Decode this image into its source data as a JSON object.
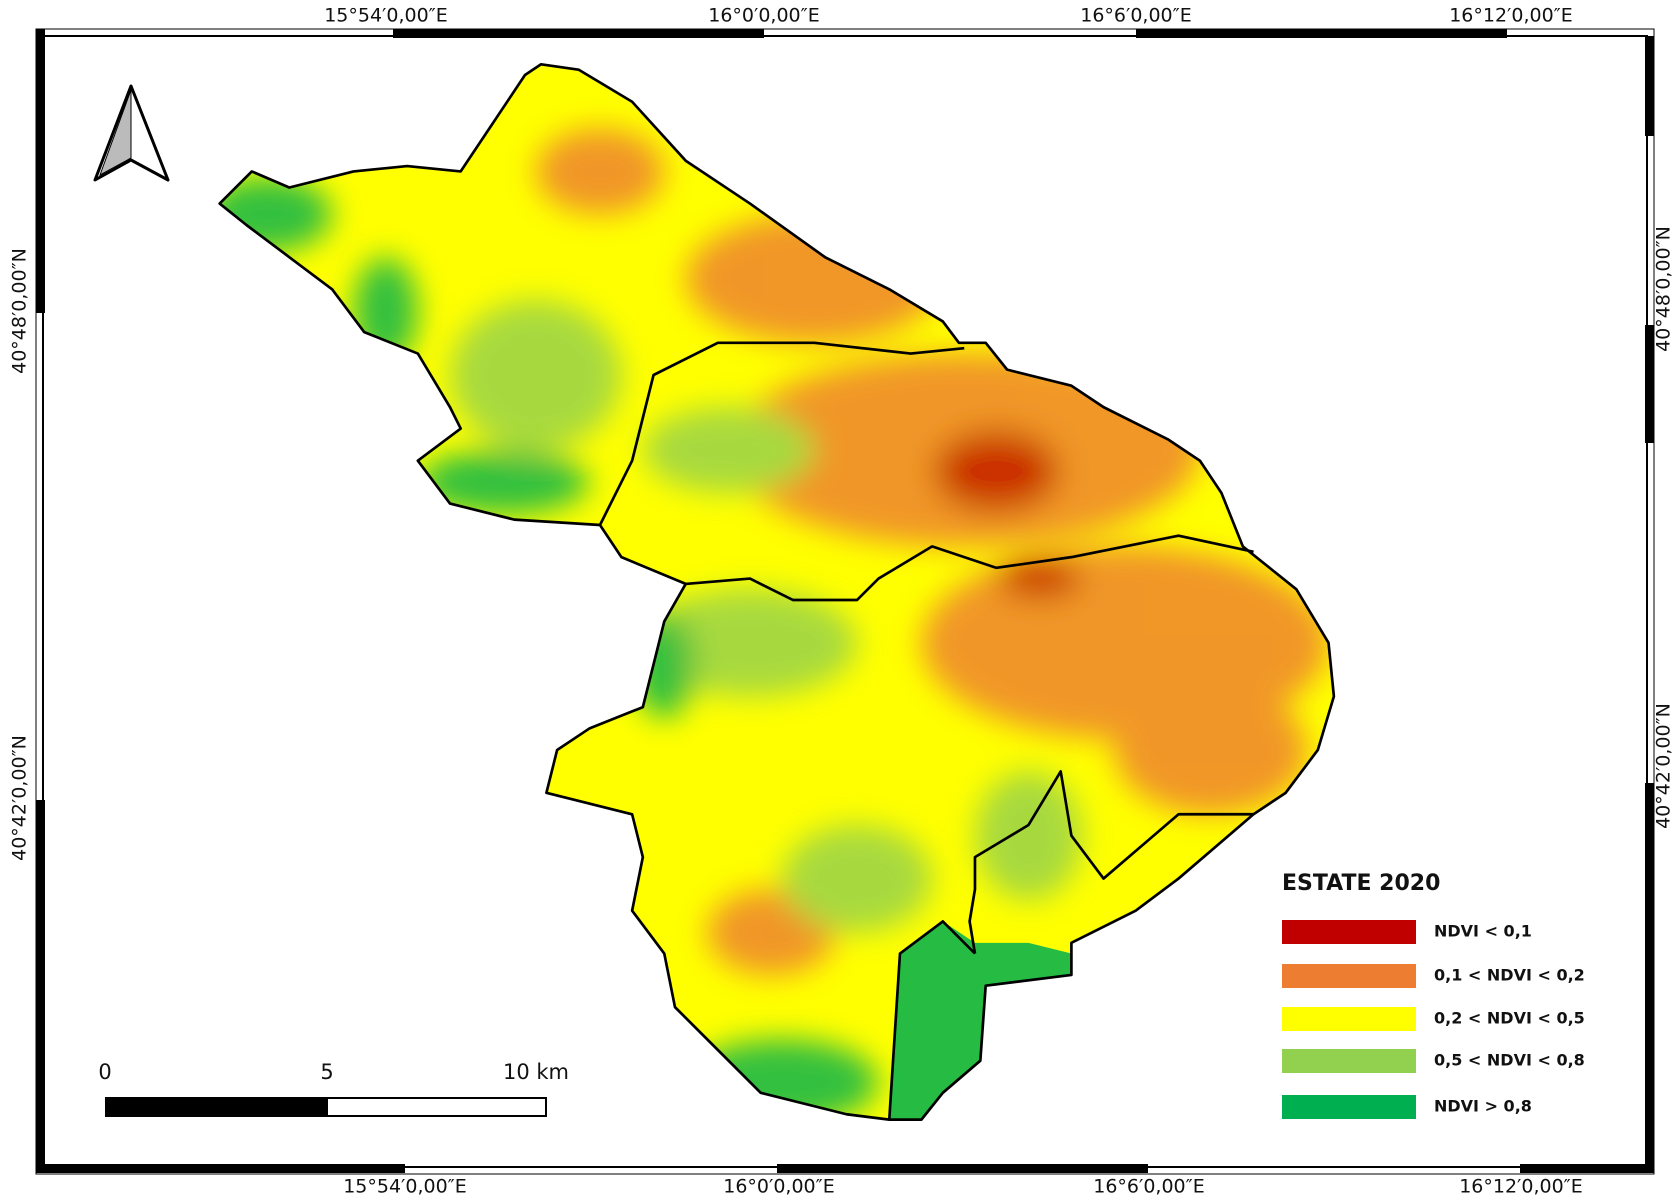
{
  "map": {
    "top_labels": [
      "15°54′0,00″E",
      "16°0′0,00″E",
      "16°6′0,00″E",
      "16°12′0,00″E"
    ],
    "bottom_labels": [
      "15°54′0,00″E",
      "16°0′0,00″E",
      "16°6′0,00″E",
      "16°12′0,00″E"
    ],
    "left_labels": [
      "40°48′0,00″N",
      "40°42′0,00″N"
    ],
    "right_labels": [
      "40°48′0,00″N",
      "40°42′0,00″N"
    ],
    "legend": {
      "title": "ESTATE 2020",
      "items": [
        {
          "label": "NDVI < 0,1",
          "color": "#c00000"
        },
        {
          "label": "0,1 < NDVI < 0,2",
          "color": "#ed7d31"
        },
        {
          "label": "0,2 < NDVI < 0,5",
          "color": "#ffff00"
        },
        {
          "label": "0,5 < NDVI < 0,8",
          "color": "#92d050"
        },
        {
          "label": "NDVI > 0,8",
          "color": "#00b050"
        }
      ]
    },
    "scale_bar": {
      "labels": [
        "0",
        "5",
        "10 km"
      ]
    }
  }
}
